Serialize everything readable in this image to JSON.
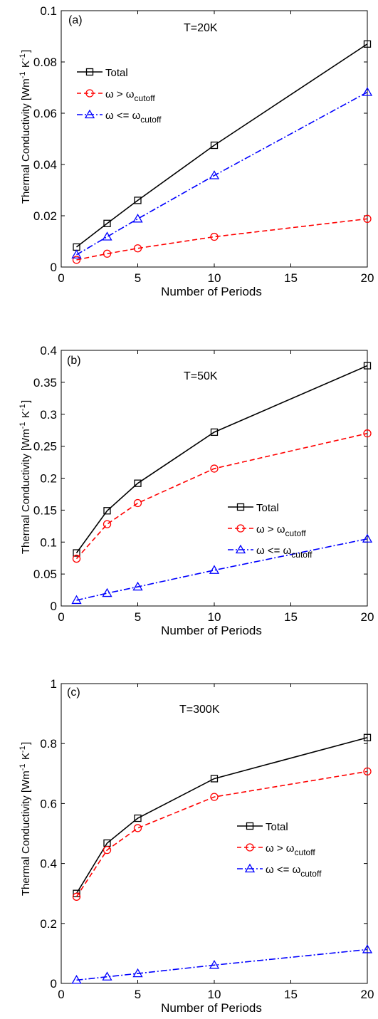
{
  "chart_data": [
    {
      "type": "line",
      "panel_label": "(a)",
      "annotation": "T=20K",
      "xlabel": "Number of Periods",
      "ylabel": "Thermal Conductivity [Wm^-1 K^-1]",
      "xlim": [
        0,
        20
      ],
      "ylim": [
        0,
        0.1
      ],
      "xticks": [
        0,
        5,
        10,
        15,
        20
      ],
      "yticks": [
        0,
        0.02,
        0.04,
        0.06,
        0.08,
        0.1
      ],
      "ytick_labels": [
        "0",
        "0.02",
        "0.04",
        "0.06",
        "0.08",
        "0.1"
      ],
      "legend_position": "upper-left",
      "x": [
        1,
        3,
        5,
        10,
        20
      ],
      "series": [
        {
          "name": "Total",
          "values": [
            0.0078,
            0.017,
            0.026,
            0.0475,
            0.087
          ],
          "color": "#000000",
          "marker": "square",
          "dash": "solid"
        },
        {
          "name": "ω > ω_cutoff",
          "values": [
            0.0028,
            0.0052,
            0.0073,
            0.0118,
            0.0188
          ],
          "color": "#ff0000",
          "marker": "circle",
          "dash": "dashed"
        },
        {
          "name": "ω <= ω_cutoff",
          "values": [
            0.0048,
            0.0118,
            0.0188,
            0.0357,
            0.0682
          ],
          "color": "#0000ff",
          "marker": "triangle",
          "dash": "dashdot"
        }
      ]
    },
    {
      "type": "line",
      "panel_label": "(b)",
      "annotation": "T=50K",
      "xlabel": "Number of Periods",
      "ylabel": "Thermal Conductivity [Wm^-1 K^-1]",
      "xlim": [
        0,
        20
      ],
      "ylim": [
        0,
        0.4
      ],
      "xticks": [
        0,
        5,
        10,
        15,
        20
      ],
      "yticks": [
        0,
        0.05,
        0.1,
        0.15,
        0.2,
        0.25,
        0.3,
        0.35,
        0.4
      ],
      "ytick_labels": [
        "0",
        "0.05",
        "0.1",
        "0.15",
        "0.2",
        "0.25",
        "0.3",
        "0.35",
        "0.4"
      ],
      "legend_position": "center-right",
      "x": [
        1,
        3,
        5,
        10,
        20
      ],
      "series": [
        {
          "name": "Total",
          "values": [
            0.083,
            0.149,
            0.192,
            0.272,
            0.376
          ],
          "color": "#000000",
          "marker": "square",
          "dash": "solid"
        },
        {
          "name": "ω > ω_cutoff",
          "values": [
            0.074,
            0.128,
            0.161,
            0.215,
            0.27
          ],
          "color": "#ff0000",
          "marker": "circle",
          "dash": "dashed"
        },
        {
          "name": "ω <= ω_cutoff",
          "values": [
            0.009,
            0.02,
            0.03,
            0.056,
            0.105
          ],
          "color": "#0000ff",
          "marker": "triangle",
          "dash": "dashdot"
        }
      ]
    },
    {
      "type": "line",
      "panel_label": "(c)",
      "annotation": "T=300K",
      "xlabel": "Number of Periods",
      "ylabel": "Thermal Conductivity [Wm^-1 K^-1]",
      "xlim": [
        0,
        20
      ],
      "ylim": [
        0,
        1
      ],
      "xticks": [
        0,
        5,
        10,
        15,
        20
      ],
      "yticks": [
        0,
        0.2,
        0.4,
        0.6,
        0.8,
        1
      ],
      "ytick_labels": [
        "0",
        "0.2",
        "0.4",
        "0.6",
        "0.8",
        "1"
      ],
      "legend_position": "center-right",
      "x": [
        1,
        3,
        5,
        10,
        20
      ],
      "series": [
        {
          "name": "Total",
          "values": [
            0.3,
            0.468,
            0.551,
            0.683,
            0.82
          ],
          "color": "#000000",
          "marker": "square",
          "dash": "solid"
        },
        {
          "name": "ω > ω_cutoff",
          "values": [
            0.289,
            0.445,
            0.518,
            0.622,
            0.707
          ],
          "color": "#ff0000",
          "marker": "circle",
          "dash": "dashed"
        },
        {
          "name": "ω <= ω_cutoff",
          "values": [
            0.011,
            0.022,
            0.033,
            0.061,
            0.113
          ],
          "color": "#0000ff",
          "marker": "triangle",
          "dash": "dashdot"
        }
      ]
    }
  ]
}
